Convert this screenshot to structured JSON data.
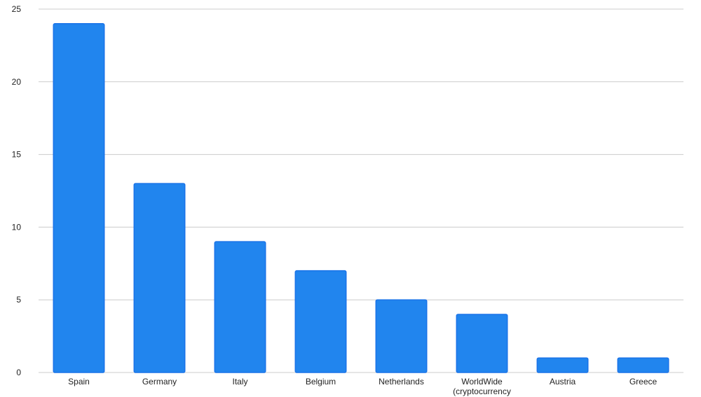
{
  "chart_data": {
    "type": "bar",
    "categories": [
      "Spain",
      "Germany",
      "Italy",
      "Belgium",
      "Netherlands",
      "WorldWide (cryptocurrency",
      "Austria",
      "Greece"
    ],
    "values": [
      24,
      13,
      9,
      7,
      5,
      4,
      1,
      1
    ],
    "color": "#2185ee",
    "ylim": [
      0,
      25
    ],
    "yticks": [
      0,
      5,
      10,
      15,
      20,
      25
    ],
    "grid": true
  }
}
